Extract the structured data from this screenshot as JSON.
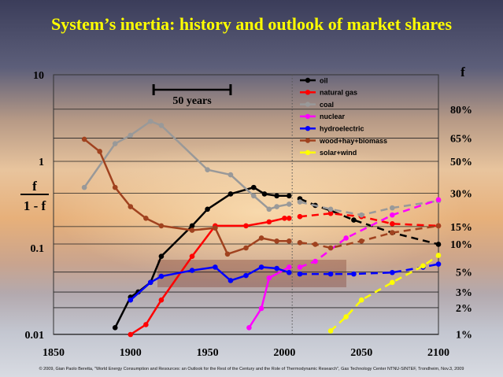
{
  "title": "System’s inertia: history and outlook of market shares",
  "credit": "© 2009, Gian Paolo Beretta, \"World Energy Consumption and Resources: an Outlook for the Rest of the Century and the Role of Thermodynamic Research\", Gas Technology Center NTNU-SINTEF, Trondheim, Nov.3, 2009",
  "chart_data": {
    "type": "line",
    "title": "System’s inertia: history and outlook of market shares",
    "y_scale": "log",
    "xlim": [
      1850,
      2100
    ],
    "ylim": [
      0.01,
      10
    ],
    "x_ticks": [
      "1850",
      "1900",
      "1950",
      "2000",
      "2050",
      "2100"
    ],
    "y_ticks": [
      "10",
      "1",
      "0.1",
      "0.01"
    ],
    "ylabel": {
      "top": "f",
      "bottom": "1 - f"
    },
    "right_axis_title": "f",
    "right_ticks": [
      {
        "label": "80%",
        "f": 0.8
      },
      {
        "label": "65%",
        "f": 0.65
      },
      {
        "label": "50%",
        "f": 0.5
      },
      {
        "label": "30%",
        "f": 0.3
      },
      {
        "label": "15%",
        "f": 0.15
      },
      {
        "label": "10%",
        "f": 0.1
      },
      {
        "label": "5%",
        "f": 0.05
      },
      {
        "label": "3%",
        "f": 0.03
      },
      {
        "label": "2%",
        "f": 0.02
      },
      {
        "label": "1%",
        "f": 0.01
      }
    ],
    "vertical_marker_year": 2005,
    "annotation": {
      "label": "50 years",
      "from": 1915,
      "to": 1965
    },
    "series": [
      {
        "name": "oil",
        "color": "#000000",
        "historical": [
          [
            1890,
            0.012
          ],
          [
            1900,
            0.027
          ],
          [
            1905,
            0.031
          ],
          [
            1913,
            0.04
          ],
          [
            1920,
            0.08
          ],
          [
            1940,
            0.18
          ],
          [
            1950,
            0.28
          ],
          [
            1965,
            0.42
          ],
          [
            1980,
            0.5
          ],
          [
            1987,
            0.42
          ],
          [
            1995,
            0.4
          ],
          [
            2003,
            0.4
          ]
        ],
        "outlook": [
          [
            2010,
            0.37
          ],
          [
            2020,
            0.31
          ],
          [
            2030,
            0.27
          ],
          [
            2045,
            0.21
          ],
          [
            2070,
            0.15
          ],
          [
            2100,
            0.11
          ]
        ]
      },
      {
        "name": "natural gas",
        "color": "#ff0000",
        "historical": [
          [
            1900,
            0.01
          ],
          [
            1910,
            0.013
          ],
          [
            1920,
            0.025
          ],
          [
            1940,
            0.08
          ],
          [
            1955,
            0.18
          ],
          [
            1975,
            0.18
          ],
          [
            1990,
            0.2
          ],
          [
            2000,
            0.22
          ],
          [
            2003,
            0.22
          ]
        ],
        "outlook": [
          [
            2010,
            0.23
          ],
          [
            2030,
            0.25
          ],
          [
            2050,
            0.23
          ],
          [
            2070,
            0.19
          ],
          [
            2100,
            0.18
          ]
        ]
      },
      {
        "name": "coal",
        "color": "#999999",
        "historical": [
          [
            1870,
            0.5
          ],
          [
            1890,
            1.6
          ],
          [
            1900,
            2.0
          ],
          [
            1913,
            2.9
          ],
          [
            1920,
            2.6
          ],
          [
            1950,
            0.8
          ],
          [
            1965,
            0.7
          ],
          [
            1980,
            0.4
          ],
          [
            1990,
            0.28
          ],
          [
            1995,
            0.3
          ],
          [
            2003,
            0.32
          ]
        ],
        "outlook": [
          [
            2010,
            0.34
          ],
          [
            2030,
            0.28
          ],
          [
            2050,
            0.24
          ],
          [
            2070,
            0.29
          ],
          [
            2100,
            0.35
          ]
        ]
      },
      {
        "name": "nuclear",
        "color": "#ff00ff",
        "historical": [
          [
            1977,
            0.012
          ],
          [
            1985,
            0.02
          ],
          [
            1990,
            0.045
          ],
          [
            2003,
            0.06
          ]
        ],
        "outlook": [
          [
            2010,
            0.06
          ],
          [
            2020,
            0.07
          ],
          [
            2040,
            0.13
          ],
          [
            2070,
            0.24
          ],
          [
            2100,
            0.36
          ]
        ]
      },
      {
        "name": "hydroelectric",
        "color": "#0000ff",
        "historical": [
          [
            1900,
            0.025
          ],
          [
            1913,
            0.04
          ],
          [
            1920,
            0.047
          ],
          [
            1940,
            0.055
          ],
          [
            1955,
            0.06
          ],
          [
            1965,
            0.042
          ],
          [
            1975,
            0.048
          ],
          [
            1985,
            0.06
          ],
          [
            1995,
            0.058
          ],
          [
            2003,
            0.052
          ]
        ],
        "outlook": [
          [
            2010,
            0.05
          ],
          [
            2030,
            0.05
          ],
          [
            2045,
            0.05
          ],
          [
            2070,
            0.052
          ],
          [
            2090,
            0.06
          ],
          [
            2100,
            0.065
          ]
        ]
      },
      {
        "name": "wood+hay+biomass",
        "color": "#a0421f",
        "historical": [
          [
            1870,
            1.8
          ],
          [
            1880,
            1.3
          ],
          [
            1890,
            0.5
          ],
          [
            1900,
            0.3
          ],
          [
            1910,
            0.22
          ],
          [
            1920,
            0.18
          ],
          [
            1940,
            0.16
          ],
          [
            1955,
            0.17
          ],
          [
            1963,
            0.085
          ],
          [
            1975,
            0.1
          ],
          [
            1985,
            0.13
          ],
          [
            1995,
            0.12
          ],
          [
            2003,
            0.12
          ]
        ],
        "outlook": [
          [
            2010,
            0.115
          ],
          [
            2020,
            0.11
          ],
          [
            2030,
            0.1
          ],
          [
            2050,
            0.12
          ],
          [
            2070,
            0.15
          ],
          [
            2100,
            0.18
          ]
        ]
      },
      {
        "name": "solar+wind",
        "color": "#ffff00",
        "historical": [],
        "outlook": [
          [
            2030,
            0.011
          ],
          [
            2040,
            0.016
          ],
          [
            2050,
            0.025
          ],
          [
            2070,
            0.04
          ],
          [
            2090,
            0.062
          ],
          [
            2100,
            0.082
          ]
        ]
      }
    ]
  }
}
